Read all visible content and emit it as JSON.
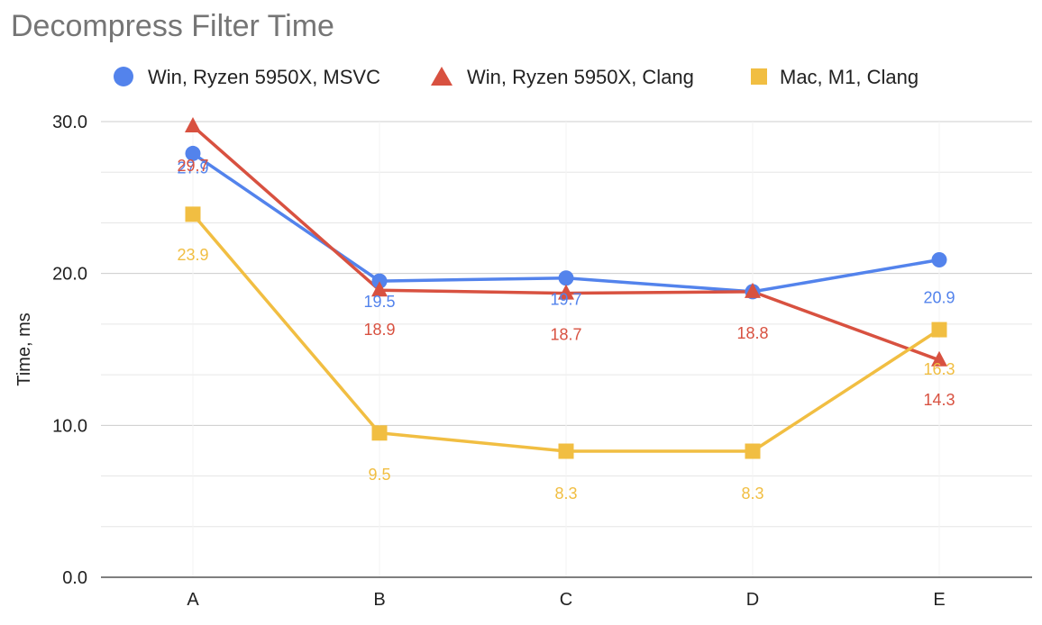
{
  "chart_data": {
    "type": "line",
    "title": "Decompress Filter Time",
    "xlabel": "",
    "ylabel": "Time, ms",
    "categories": [
      "A",
      "B",
      "C",
      "D",
      "E"
    ],
    "ylim": [
      0,
      30
    ],
    "yticks": [
      "0.0",
      "10.0",
      "20.0",
      "30.0"
    ],
    "grid": true,
    "legend_position": "top",
    "series": [
      {
        "name": "Win, Ryzen 5950X, MSVC",
        "color": "#5383EC",
        "marker": "circle",
        "values": [
          27.9,
          19.5,
          19.7,
          18.8,
          20.9
        ],
        "labels": [
          "27.9",
          "19.5",
          "19.7",
          "",
          "20.9"
        ]
      },
      {
        "name": "Win, Ryzen 5950X, Clang",
        "color": "#D85140",
        "marker": "triangle",
        "values": [
          29.7,
          18.9,
          18.7,
          18.8,
          14.3
        ],
        "labels": [
          "29.7",
          "18.9",
          "18.7",
          "18.8",
          "14.3"
        ]
      },
      {
        "name": "Mac, M1, Clang",
        "color": "#F1BE42",
        "marker": "square",
        "values": [
          23.9,
          9.5,
          8.3,
          8.3,
          16.3
        ],
        "labels": [
          "23.9",
          "9.5",
          "8.3",
          "8.3",
          "16.3"
        ]
      }
    ]
  }
}
